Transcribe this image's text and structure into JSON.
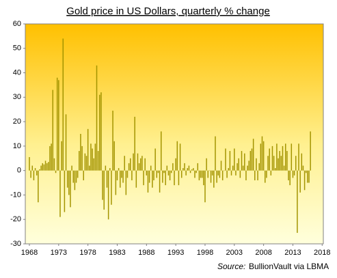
{
  "chart_data": {
    "type": "bar",
    "title": "Gold price in US Dollars, quarterly % change",
    "source_label": "Source:",
    "source": "BullionVault via LBMA",
    "color": "#a39400",
    "x": [
      1968,
      1968.25,
      1968.5,
      1968.75,
      1969,
      1969.25,
      1969.5,
      1969.75,
      1970,
      1970.25,
      1970.5,
      1970.75,
      1971,
      1971.25,
      1971.5,
      1971.75,
      1972,
      1972.25,
      1972.5,
      1972.75,
      1973,
      1973.25,
      1973.5,
      1973.75,
      1974,
      1974.25,
      1974.5,
      1974.75,
      1975,
      1975.25,
      1975.5,
      1975.75,
      1976,
      1976.25,
      1976.5,
      1976.75,
      1977,
      1977.25,
      1977.5,
      1977.75,
      1978,
      1978.25,
      1978.5,
      1978.75,
      1979,
      1979.25,
      1979.5,
      1979.75,
      1980,
      1980.25,
      1980.5,
      1980.75,
      1981,
      1981.25,
      1981.5,
      1981.75,
      1982,
      1982.25,
      1982.5,
      1982.75,
      1983,
      1983.25,
      1983.5,
      1983.75,
      1984,
      1984.25,
      1984.5,
      1984.75,
      1985,
      1985.25,
      1985.5,
      1985.75,
      1986,
      1986.25,
      1986.5,
      1986.75,
      1987,
      1987.25,
      1987.5,
      1987.75,
      1988,
      1988.25,
      1988.5,
      1988.75,
      1989,
      1989.25,
      1989.5,
      1989.75,
      1990,
      1990.25,
      1990.5,
      1990.75,
      1991,
      1991.25,
      1991.5,
      1991.75,
      1992,
      1992.25,
      1992.5,
      1992.75,
      1993,
      1993.25,
      1993.5,
      1993.75,
      1994,
      1994.25,
      1994.5,
      1994.75,
      1995,
      1995.25,
      1995.5,
      1995.75,
      1996,
      1996.25,
      1996.5,
      1996.75,
      1997,
      1997.25,
      1997.5,
      1997.75,
      1998,
      1998.25,
      1998.5,
      1998.75,
      1999,
      1999.25,
      1999.5,
      1999.75,
      2000,
      2000.25,
      2000.5,
      2000.75,
      2001,
      2001.25,
      2001.5,
      2001.75,
      2002,
      2002.25,
      2002.5,
      2002.75,
      2003,
      2003.25,
      2003.5,
      2003.75,
      2004,
      2004.25,
      2004.5,
      2004.75,
      2005,
      2005.25,
      2005.5,
      2005.75,
      2006,
      2006.25,
      2006.5,
      2006.75,
      2007,
      2007.25,
      2007.5,
      2007.75,
      2008,
      2008.25,
      2008.5,
      2008.75,
      2009,
      2009.25,
      2009.5,
      2009.75,
      2010,
      2010.25,
      2010.5,
      2010.75,
      2011,
      2011.25,
      2011.5,
      2011.75,
      2012,
      2012.25,
      2012.5,
      2012.75,
      2013,
      2013.25,
      2013.5,
      2013.75,
      2014,
      2014.25,
      2014.5,
      2014.75,
      2015,
      2015.25,
      2015.5,
      2015.75,
      2016
    ],
    "values": [
      5.5,
      -3,
      2,
      -4,
      1,
      -2,
      -13,
      0.5,
      2,
      3,
      2.5,
      4,
      3,
      3.5,
      10,
      11,
      33,
      5,
      -1,
      38,
      37,
      -19,
      12,
      54,
      -17,
      23,
      -7,
      -10,
      -15,
      2,
      -5,
      -8,
      -5,
      -3,
      8,
      15,
      10,
      -4,
      7,
      6,
      17,
      2,
      11,
      9,
      5,
      11,
      43,
      8,
      31,
      32,
      -12,
      -16,
      2,
      -7,
      -20,
      1,
      -14,
      24.5,
      12,
      -10,
      -4,
      1,
      -7,
      -3,
      -5,
      6,
      -10,
      -3,
      3,
      5,
      -4,
      7,
      22,
      -7,
      7,
      3,
      5,
      6,
      -6,
      5,
      -2,
      -9,
      -5,
      2,
      -7,
      -4,
      9,
      -3,
      -1,
      -9,
      16,
      -5,
      -1,
      -6,
      2,
      -2,
      -4,
      -1,
      3,
      -6,
      5,
      12,
      -6,
      11,
      -3,
      1,
      3,
      -2,
      1,
      2,
      -1,
      0.5,
      1,
      -3,
      -1,
      3,
      -4,
      -3,
      -3,
      -6,
      -13,
      5,
      -3,
      0,
      -5,
      -2,
      -7,
      14,
      -5,
      -2,
      -3,
      4,
      -4,
      0,
      9,
      -3,
      1,
      8,
      -2,
      2,
      9,
      -2,
      3,
      5,
      -3,
      8,
      2,
      7,
      -4,
      2,
      4,
      8,
      9,
      13,
      -4,
      5,
      -4,
      3,
      11,
      14,
      12,
      -5,
      -3,
      6,
      9,
      -2,
      10,
      6,
      1,
      11,
      5,
      8,
      6,
      10,
      2,
      11,
      8,
      -4,
      -6,
      11,
      -3,
      -2,
      6,
      -25.5,
      11,
      -9,
      7,
      2,
      -8,
      -1,
      -5,
      -5,
      16
    ],
    "xlim": [
      1967.3,
      2018.2
    ],
    "xticks": [
      1968,
      1973,
      1978,
      1983,
      1988,
      1993,
      1998,
      2003,
      2008,
      2013,
      2018
    ],
    "ylim": [
      -30,
      60
    ],
    "yticks": [
      -30,
      -20,
      -10,
      0,
      10,
      20,
      30,
      40,
      50,
      60
    ]
  }
}
